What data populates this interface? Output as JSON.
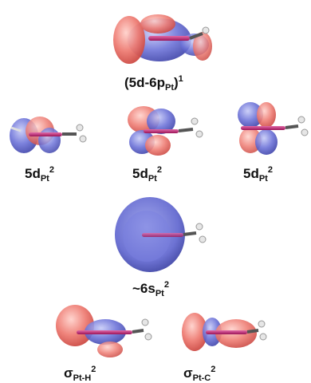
{
  "orbitals": [
    {
      "id": "mix",
      "base": "(5d-6p",
      "sub": "Pt",
      "close": ")",
      "sup": "1"
    },
    {
      "id": "d1",
      "base": "5d",
      "sub": "Pt",
      "sup": "2"
    },
    {
      "id": "d2",
      "base": "5d",
      "sub": "Pt",
      "sup": "2"
    },
    {
      "id": "d3",
      "base": "5d",
      "sub": "Pt",
      "sup": "2"
    },
    {
      "id": "s",
      "base": "~6s",
      "sub": "Pt",
      "sup": "2"
    },
    {
      "id": "sigmaH",
      "base": "σ",
      "sub": "Pt-H",
      "sup": "2"
    },
    {
      "id": "sigmaC",
      "base": "σ",
      "sub": "Pt-C",
      "sup": "2"
    }
  ],
  "colors": {
    "positive_lobe": "#e8736c",
    "negative_lobe": "#5b62c8",
    "bond": "#c0206e",
    "methyl": "#666666"
  }
}
